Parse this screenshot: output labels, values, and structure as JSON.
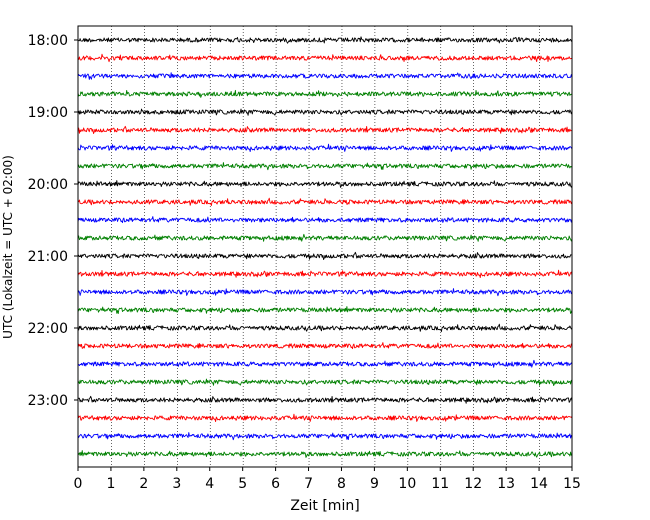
{
  "chart_data": {
    "type": "line",
    "title": "",
    "xlabel": "Zeit  [min]",
    "ylabel": "UTC (Lokalzeit = UTC + 02:00)",
    "xlim": [
      0,
      15
    ],
    "x_ticks": [
      0,
      1,
      2,
      3,
      4,
      5,
      6,
      7,
      8,
      9,
      10,
      11,
      12,
      13,
      14,
      15
    ],
    "y_ticks": [
      "18:00",
      "19:00",
      "20:00",
      "21:00",
      "22:00",
      "23:00"
    ],
    "grid": "vertical dotted",
    "trace_minutes": 15,
    "traces": [
      {
        "start": "18:00",
        "color": "#000000"
      },
      {
        "start": "18:15",
        "color": "#ff0000"
      },
      {
        "start": "18:30",
        "color": "#0000ff"
      },
      {
        "start": "18:45",
        "color": "#008000"
      },
      {
        "start": "19:00",
        "color": "#000000"
      },
      {
        "start": "19:15",
        "color": "#ff0000"
      },
      {
        "start": "19:30",
        "color": "#0000ff"
      },
      {
        "start": "19:45",
        "color": "#008000"
      },
      {
        "start": "20:00",
        "color": "#000000"
      },
      {
        "start": "20:15",
        "color": "#ff0000"
      },
      {
        "start": "20:30",
        "color": "#0000ff"
      },
      {
        "start": "20:45",
        "color": "#008000"
      },
      {
        "start": "21:00",
        "color": "#000000"
      },
      {
        "start": "21:15",
        "color": "#ff0000"
      },
      {
        "start": "21:30",
        "color": "#0000ff"
      },
      {
        "start": "21:45",
        "color": "#008000"
      },
      {
        "start": "22:00",
        "color": "#000000"
      },
      {
        "start": "22:15",
        "color": "#ff0000"
      },
      {
        "start": "22:30",
        "color": "#0000ff"
      },
      {
        "start": "22:45",
        "color": "#008000"
      },
      {
        "start": "23:00",
        "color": "#000000"
      },
      {
        "start": "23:15",
        "color": "#ff0000"
      },
      {
        "start": "23:30",
        "color": "#0000ff"
      },
      {
        "start": "23:45",
        "color": "#008000"
      }
    ]
  }
}
